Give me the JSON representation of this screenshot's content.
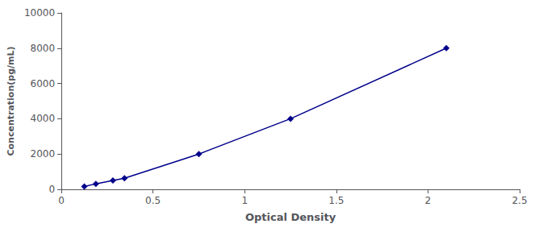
{
  "chart_data": {
    "type": "line",
    "x": [
      0.125,
      0.188,
      0.281,
      0.344,
      0.75,
      1.25,
      2.1
    ],
    "values": [
      156,
      313,
      500,
      625,
      2000,
      4000,
      8000
    ],
    "color": "#00008B",
    "marker": "diamond",
    "line_style": "solid",
    "xlabel": "Optical Density",
    "ylabel": "Concentration(pg/mL)",
    "xlim": [
      0,
      2.5
    ],
    "ylim": [
      0,
      10000
    ],
    "xticks": [
      0,
      0.5,
      1,
      1.5,
      2,
      2.5
    ],
    "yticks": [
      0,
      2000,
      4000,
      6000,
      8000,
      10000
    ],
    "grid": false
  }
}
